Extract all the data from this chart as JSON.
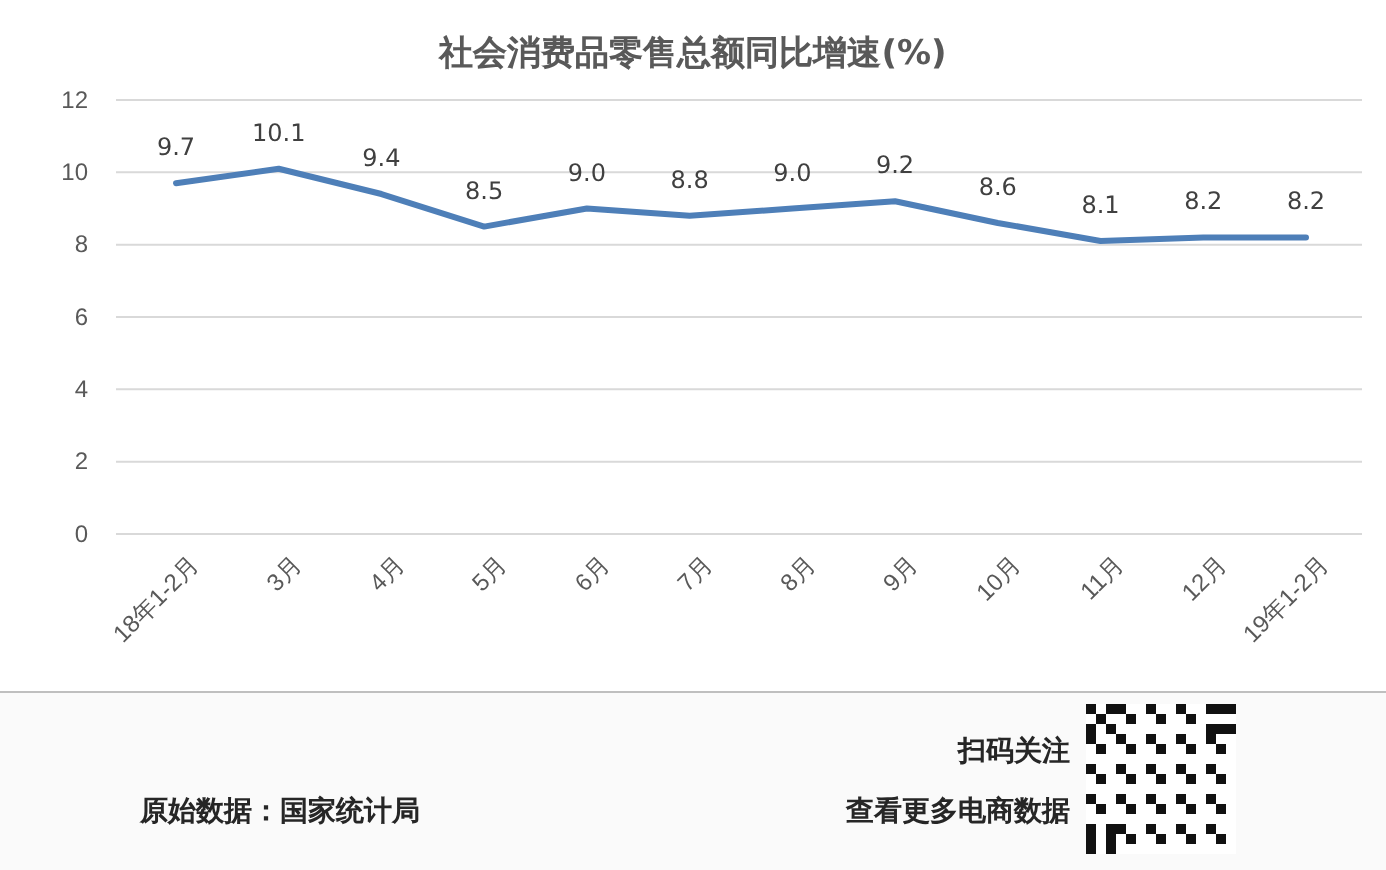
{
  "chart_data": {
    "type": "line",
    "title": "社会消费品零售总额同比增速(%)",
    "categories": [
      "18年1-2月",
      "3月",
      "4月",
      "5月",
      "6月",
      "7月",
      "8月",
      "9月",
      "10月",
      "11月",
      "12月",
      "19年1-2月"
    ],
    "series": [
      {
        "color": "#4e7fb8",
        "values": [
          9.7,
          10.1,
          9.4,
          8.5,
          9.0,
          8.8,
          9.0,
          9.2,
          8.6,
          8.1,
          8.2,
          8.2
        ],
        "value_labels": [
          "9.7",
          "10.1",
          "9.4",
          "8.5",
          "9.0",
          "8.8",
          "9.0",
          "9.2",
          "8.6",
          "8.1",
          "8.2",
          "8.2"
        ]
      }
    ],
    "ylim": [
      0,
      12
    ],
    "yticks": [
      0,
      2,
      4,
      6,
      8,
      10,
      12
    ],
    "grid": "y",
    "marker": "none",
    "line_style": "solid",
    "annotations": [
      "原始数据：国家统计局",
      "扫码关注",
      "查看更多电商数据"
    ]
  }
}
